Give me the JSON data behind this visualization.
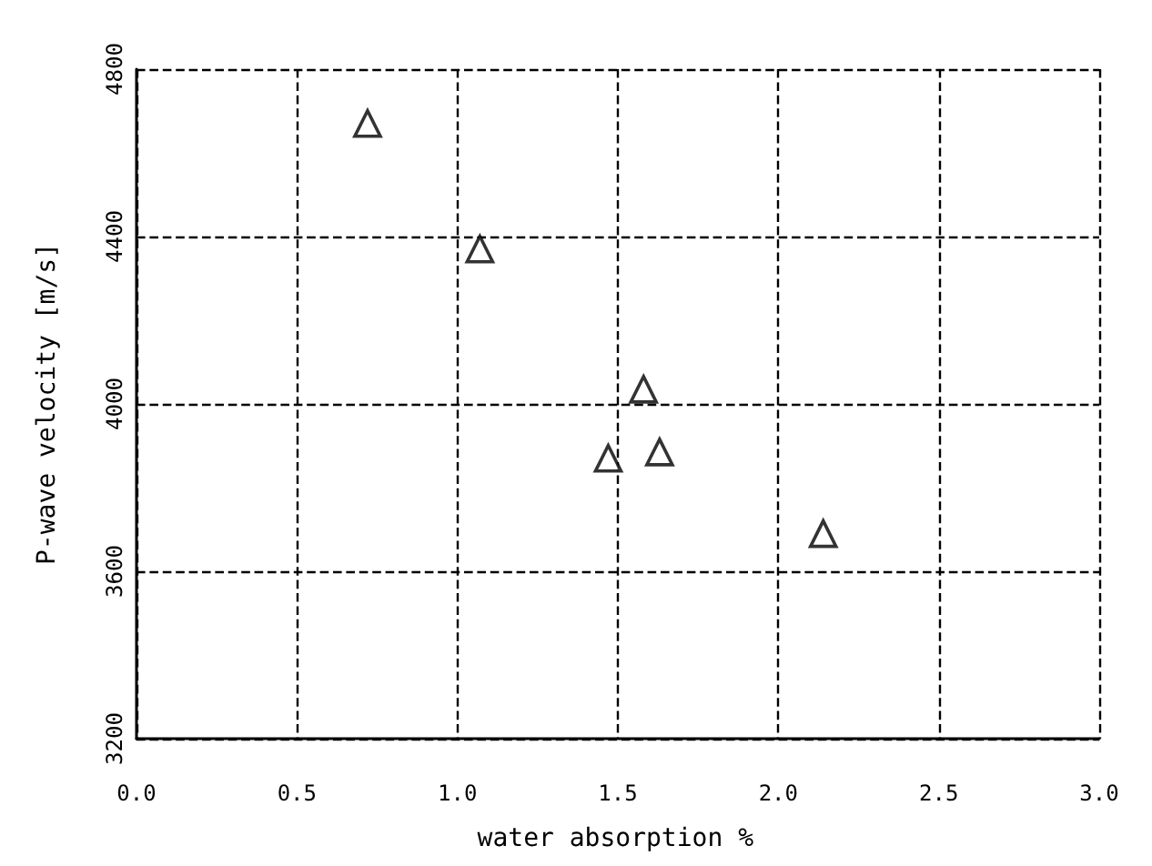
{
  "chart_data": {
    "type": "scatter",
    "xlabel": "water absorption %",
    "ylabel": "P-wave velocity [m/s]",
    "x": [
      0.72,
      1.07,
      1.58,
      1.47,
      1.63,
      2.14
    ],
    "values": [
      4670,
      4370,
      4035,
      3870,
      3885,
      3690
    ],
    "color": "#000000",
    "marker": "triangle",
    "grid": true,
    "xlim": [
      0,
      3
    ],
    "xticks": [
      {
        "value": 0,
        "label": "0.0"
      },
      0.5,
      {
        "value": 1,
        "label": "1.0"
      },
      1.5,
      {
        "value": 2,
        "label": "2.0"
      },
      2.5,
      {
        "value": 3,
        "label": "3.0"
      }
    ],
    "ylim": [
      3200,
      4800
    ],
    "yticks": [
      3200,
      3600,
      4000,
      4400,
      4800
    ]
  }
}
